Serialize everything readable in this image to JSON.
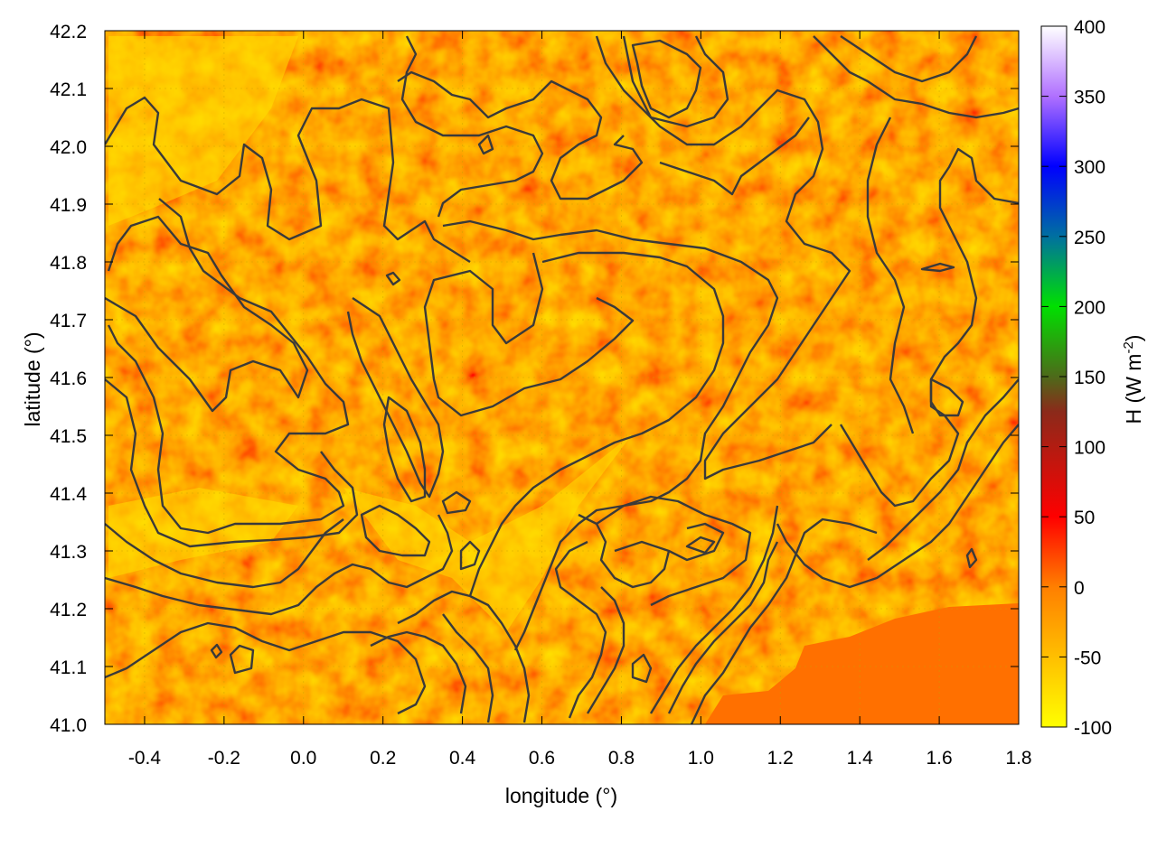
{
  "chart_data": {
    "type": "heatmap",
    "title": "",
    "xlabel": "longitude (°)",
    "ylabel": "latitude (°)",
    "colorbar_label": "H (W m",
    "colorbar_label_sup": "-2",
    "colorbar_label_end": ")",
    "xlim": [
      -0.5,
      1.8
    ],
    "ylim": [
      41.0,
      42.2
    ],
    "x_ticks": [
      "-0.4",
      "-0.2",
      "0.0",
      "0.2",
      "0.4",
      "0.6",
      "0.8",
      "1.0",
      "1.2",
      "1.4",
      "1.6",
      "1.8"
    ],
    "y_ticks": [
      "41.0",
      "41.1",
      "41.2",
      "41.3",
      "41.4",
      "41.5",
      "41.6",
      "41.7",
      "41.8",
      "41.9",
      "42.0",
      "42.1",
      "42.2"
    ],
    "colorbar_range": [
      -100,
      400
    ],
    "colorbar_ticks": [
      "-100",
      "-50",
      "0",
      "50",
      "100",
      "150",
      "200",
      "250",
      "300",
      "350",
      "400"
    ],
    "colorbar_stops": [
      {
        "value": -100,
        "color": "#ffff00"
      },
      {
        "value": 0,
        "color": "#ff7f00"
      },
      {
        "value": 50,
        "color": "#ff0000"
      },
      {
        "value": 125,
        "color": "#8b2a1a"
      },
      {
        "value": 150,
        "color": "#4d6a1a"
      },
      {
        "value": 200,
        "color": "#00e000"
      },
      {
        "value": 250,
        "color": "#0070a0"
      },
      {
        "value": 300,
        "color": "#0000ff"
      },
      {
        "value": 350,
        "color": "#b070ff"
      },
      {
        "value": 400,
        "color": "#ffffff"
      }
    ],
    "field_summary": {
      "sea_region_value": 0,
      "land_value_range": [
        -100,
        50
      ],
      "dominant_colors": [
        "#ffa000",
        "#ff7f00",
        "#ffdd00",
        "#ff3000"
      ]
    },
    "grid": true,
    "contours": true,
    "legend": "colorbar-right"
  }
}
